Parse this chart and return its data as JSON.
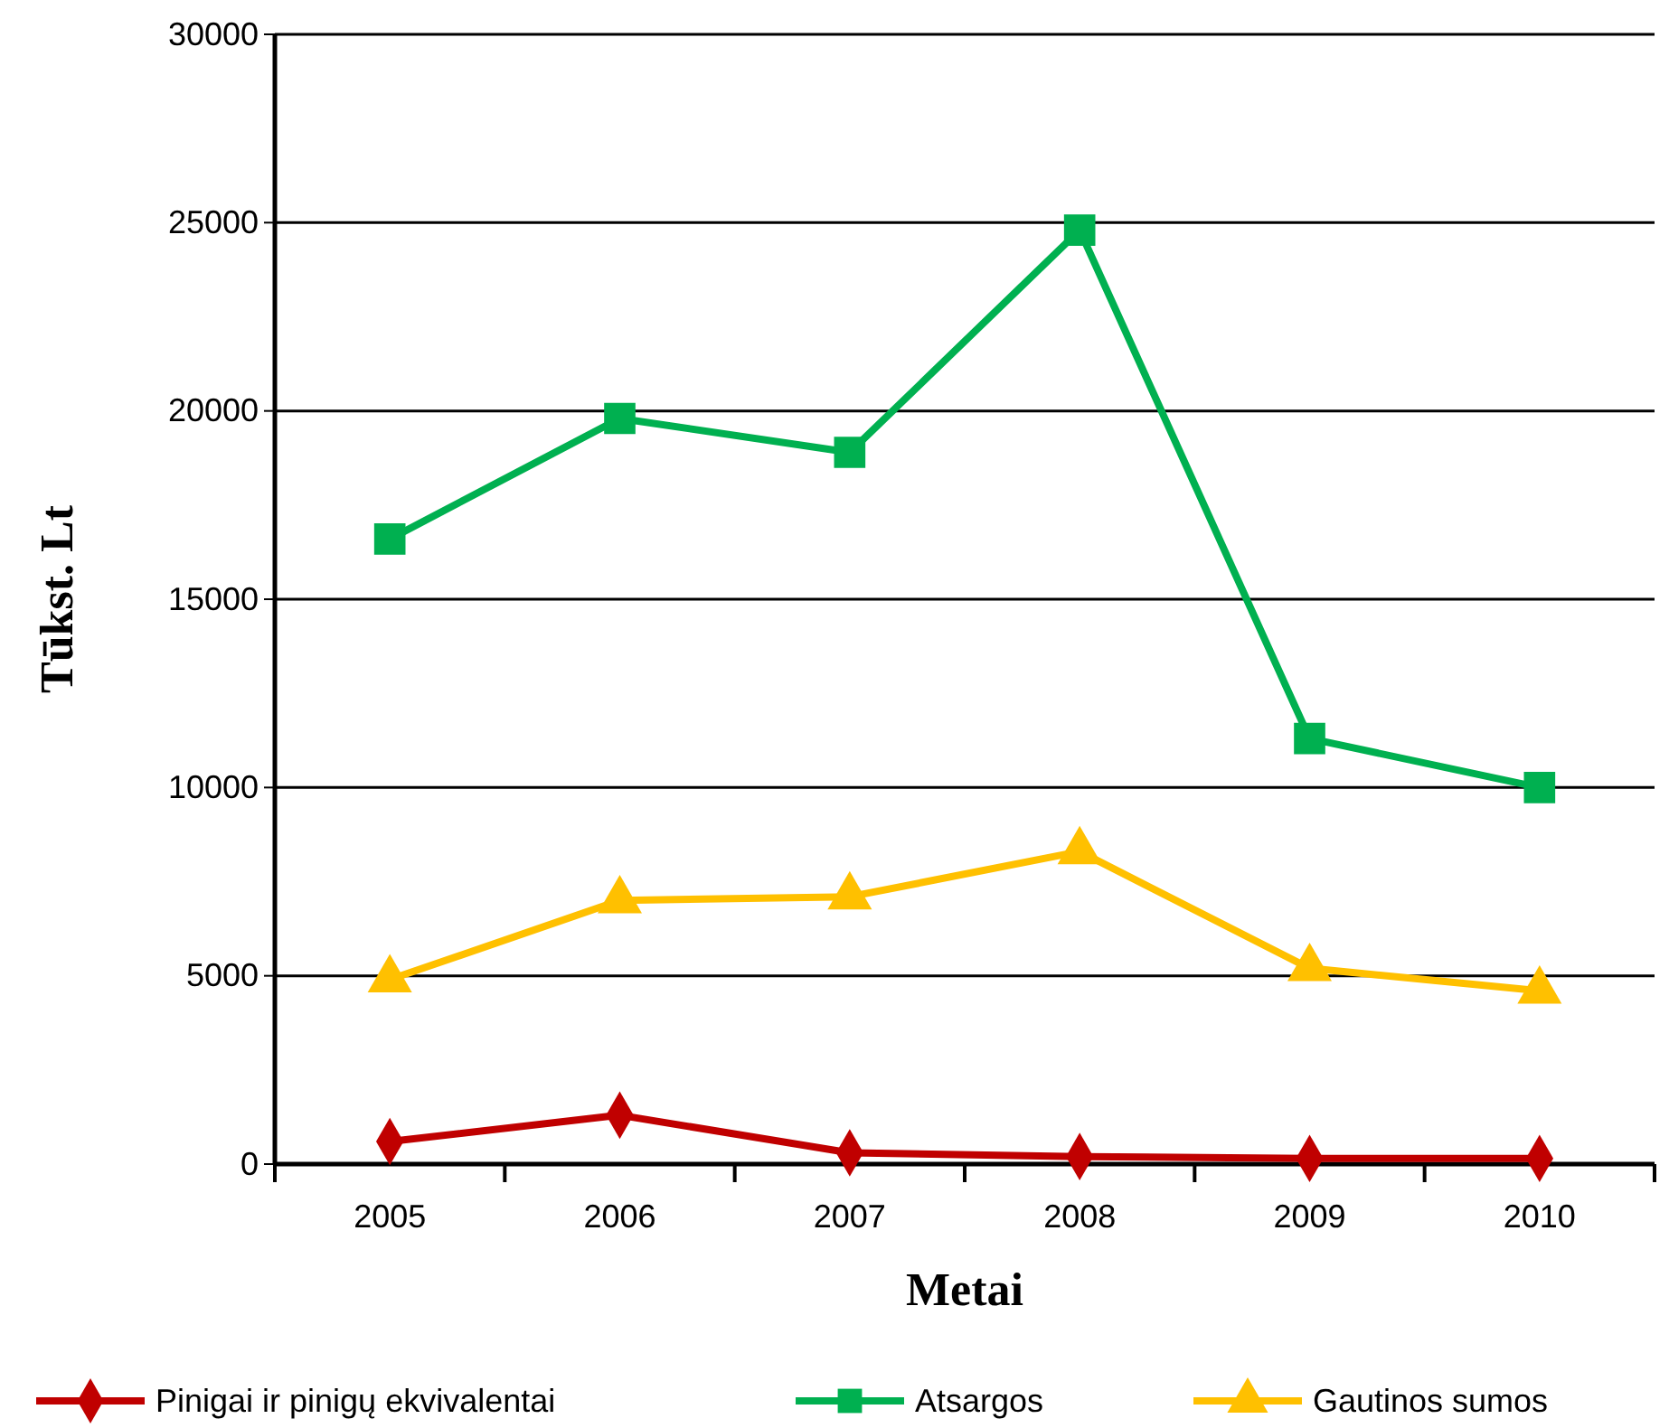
{
  "chart_data": {
    "type": "line",
    "xlabel": "Metai",
    "ylabel": "Tūkst. Lt",
    "categories": [
      "2005",
      "2006",
      "2007",
      "2008",
      "2009",
      "2010"
    ],
    "series": [
      {
        "name": "Pinigai ir pinigų ekvivalentai",
        "color": "#c00000",
        "marker": "diamond",
        "values": [
          600,
          1300,
          300,
          200,
          150,
          150
        ]
      },
      {
        "name": "Atsargos",
        "color": "#00b050",
        "marker": "square",
        "values": [
          16600,
          19800,
          18900,
          24800,
          11300,
          10000
        ]
      },
      {
        "name": "Gautinos sumos",
        "color": "#ffc000",
        "marker": "triangle",
        "values": [
          4900,
          7000,
          7100,
          8300,
          5200,
          4600
        ]
      }
    ],
    "ylim": [
      0,
      30000
    ],
    "yticks": [
      0,
      5000,
      10000,
      15000,
      20000,
      25000,
      30000
    ],
    "grid": "y",
    "legend": "bottom"
  }
}
